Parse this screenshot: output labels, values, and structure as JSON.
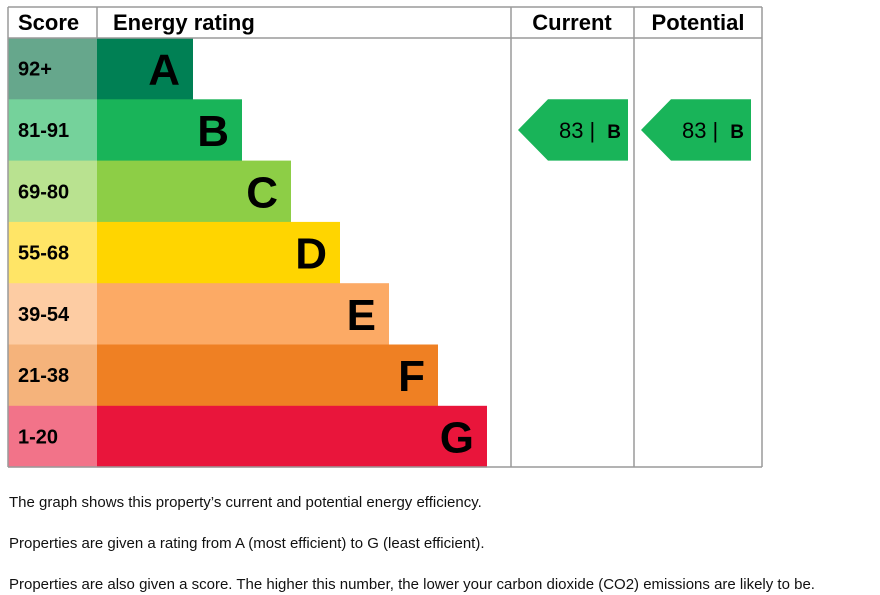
{
  "headers": {
    "score": "Score",
    "rating": "Energy rating",
    "current": "Current",
    "potential": "Potential"
  },
  "chart_data": {
    "type": "bar",
    "categories": [
      "A",
      "B",
      "C",
      "D",
      "E",
      "F",
      "G"
    ],
    "score_ranges": [
      "92+",
      "81-91",
      "69-80",
      "55-68",
      "39-54",
      "21-38",
      "1-20"
    ],
    "band_colors": [
      "#008054",
      "#19b459",
      "#8dce46",
      "#ffd500",
      "#fcaa65",
      "#ef8023",
      "#e9153b"
    ],
    "score_cell_colors": [
      "#66a78c",
      "#75d29b",
      "#b9e290",
      "#ffe566",
      "#fdcca3",
      "#f5b37b",
      "#f27389"
    ],
    "current": {
      "value": 83,
      "band": "B",
      "color": "#19b459"
    },
    "potential": {
      "value": 83,
      "band": "B",
      "color": "#19b459"
    },
    "separator": "|"
  },
  "notes": [
    "The graph shows this property’s current and potential energy efficiency.",
    "Properties are given a rating from A (most efficient) to G (least efficient).",
    "Properties are also given a score. The higher this number, the lower your carbon dioxide (CO2) emissions are likely to be."
  ]
}
